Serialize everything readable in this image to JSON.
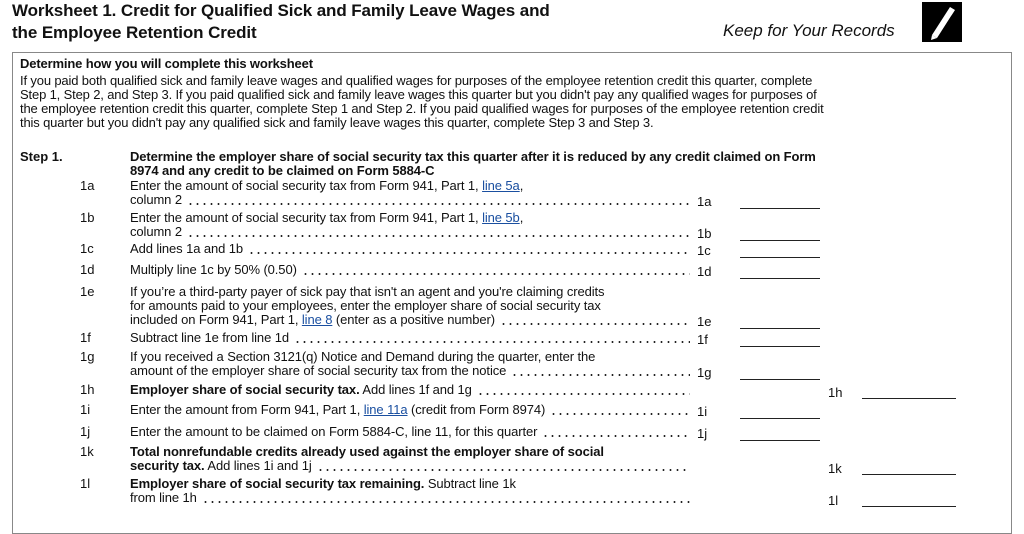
{
  "header": {
    "title_line1": "Worksheet 1. Credit for Qualified Sick and Family Leave Wages and",
    "title_line2": "the Employee Retention Credit",
    "keep": "Keep for Your Records"
  },
  "instructions": {
    "heading": "Determine how you will complete this worksheet",
    "lines": [
      "If you paid both qualified sick and family leave wages and qualified wages for purposes of the employee retention credit this quarter, complete",
      "Step 1, Step 2, and Step 3. If you paid qualified sick and family leave wages this quarter but you didn't pay any qualified wages for purposes of",
      "the employee retention credit this quarter, complete Step 1 and Step 2. If you paid qualified wages for purposes of the employee retention credit",
      "this quarter but you didn't pay any qualified sick and family leave wages this quarter, complete Step 3 and Step 3."
    ]
  },
  "step": {
    "label": "Step 1.",
    "heading_lines": [
      "Determine the employer share of social security tax this quarter after it is reduced by any credit claimed on Form",
      "8974 and any credit to be claimed on Form 5884-C"
    ]
  },
  "rows": [
    {
      "num": "1a",
      "lines": [
        [
          {
            "text": "Enter the amount of social security tax from Form 941, Part 1, "
          },
          {
            "text": "line 5a",
            "style": "link"
          },
          {
            "text": ","
          }
        ],
        [
          {
            "text": "column 2"
          }
        ]
      ],
      "ref": "1a"
    },
    {
      "num": "1b",
      "lines": [
        [
          {
            "text": "Enter the amount of social security tax from Form 941, Part 1, "
          },
          {
            "text": "line 5b",
            "style": "link"
          },
          {
            "text": ","
          }
        ],
        [
          {
            "text": "column 2"
          }
        ]
      ],
      "ref": "1b"
    },
    {
      "num": "1c",
      "lines": [
        [
          {
            "text": "Add lines 1a and 1b"
          }
        ]
      ],
      "ref": "1c"
    },
    {
      "num": "1d",
      "lines": [
        [
          {
            "text": "Multiply line 1c by 50% (0.50)"
          }
        ]
      ],
      "ref": "1d"
    },
    {
      "num": "1e",
      "lines": [
        [
          {
            "text": "If you’re a third-party payer of sick pay that isn't an agent and you're claiming credits"
          }
        ],
        [
          {
            "text": "for amounts paid to your employees, enter the employer share of social security tax"
          }
        ],
        [
          {
            "text": "included on Form 941, Part 1, "
          },
          {
            "text": "line 8",
            "style": "link"
          },
          {
            "text": " (enter as a positive number)"
          }
        ]
      ],
      "ref": "1e"
    },
    {
      "num": "1f",
      "lines": [
        [
          {
            "text": "Subtract line 1e from line 1d"
          }
        ]
      ],
      "ref": "1f"
    },
    {
      "num": "1g",
      "lines": [
        [
          {
            "text": "If you received a Section 3121(q) Notice and Demand during the quarter, enter the"
          }
        ],
        [
          {
            "text": "amount of the employer share of social security tax from the notice"
          }
        ]
      ],
      "ref": "1g"
    },
    {
      "num": "1h",
      "lines": [
        [
          {
            "text": "Employer share of social security tax.",
            "style": "bold"
          },
          {
            "text": " Add lines 1f and 1g"
          }
        ]
      ],
      "total_ref": "1h"
    },
    {
      "num": "1i",
      "lines": [
        [
          {
            "text": "Enter the amount from Form 941, Part 1, "
          },
          {
            "text": "line 11a",
            "style": "link"
          },
          {
            "text": " (credit from Form 8974)"
          }
        ]
      ],
      "ref": "1i"
    },
    {
      "num": "1j",
      "lines": [
        [
          {
            "text": "Enter the amount to be claimed on Form 5884-C, line 11, for this quarter"
          }
        ]
      ],
      "ref": "1j"
    },
    {
      "num": "1k",
      "lines": [
        [
          {
            "text": "Total nonrefundable credits already used against the employer share of social",
            "style": "bold"
          }
        ],
        [
          {
            "text": "security tax.",
            "style": "bold"
          },
          {
            "text": " Add lines 1i and 1j"
          }
        ]
      ],
      "total_ref": "1k"
    },
    {
      "num": "1l",
      "lines": [
        [
          {
            "text": "Employer share of social security tax remaining.",
            "style": "bold"
          },
          {
            "text": " Subtract line 1k"
          }
        ],
        [
          {
            "text": "from line 1h"
          }
        ]
      ],
      "total_ref": "1l"
    }
  ]
}
